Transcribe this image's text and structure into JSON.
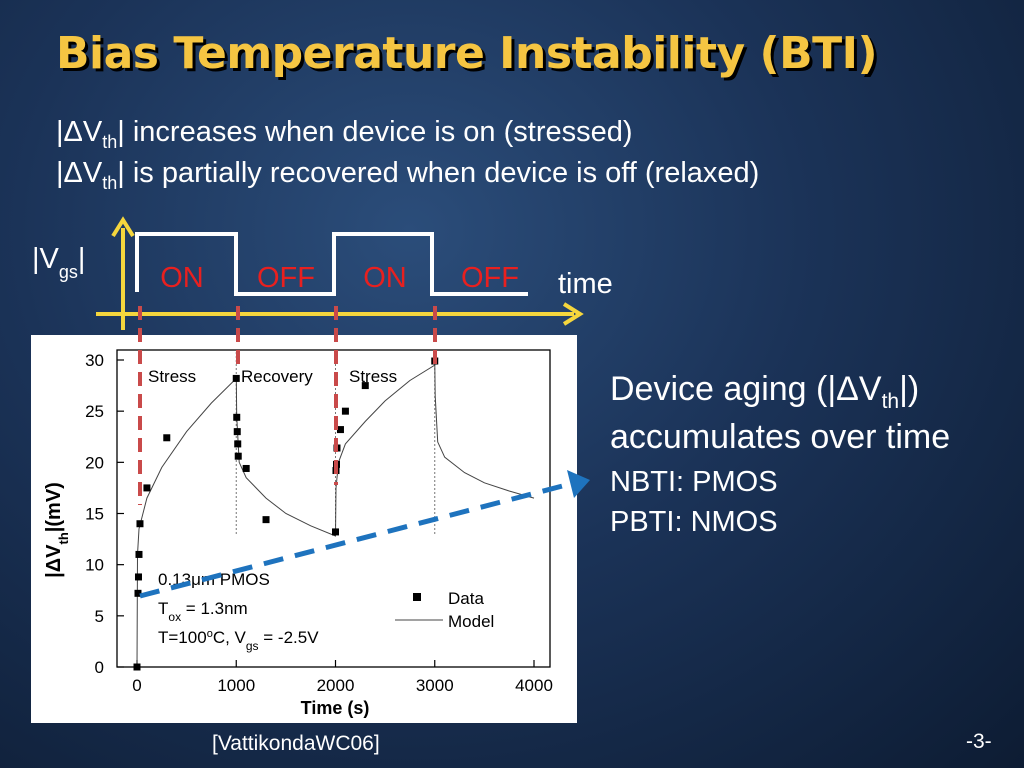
{
  "slide": {
    "title": "Bias Temperature Instability (BTI)",
    "bullets": [
      {
        "prefix": "|ΔV",
        "sub": "th",
        "suffix": "| increases when device is on (stressed)"
      },
      {
        "prefix": "|ΔV",
        "sub": "th",
        "suffix": "| is partially recovered when device is off (relaxed)"
      }
    ],
    "aging_line1": {
      "prefix": "Device aging (|ΔV",
      "sub": "th",
      "suffix": "|)"
    },
    "aging_line2": "accumulates over time",
    "nbti": "NBTI: PMOS",
    "pbti": "PBTI: NMOS",
    "citation": "[VattikondaWC06]",
    "page_number": "-3-"
  },
  "waveform": {
    "ylabel_prefix": "|V",
    "ylabel_sub": "gs",
    "ylabel_suffix": "|",
    "xlabel": "time",
    "phases": [
      "ON",
      "OFF",
      "ON",
      "OFF"
    ],
    "colors": {
      "axis": "#f5d63d",
      "wave": "#ffffff",
      "phase_on": "#e8201f",
      "phase_off": "#e8201f",
      "marker": "#c94a4a",
      "trend": "#1e73be"
    }
  },
  "chart_data": {
    "type": "scatter",
    "xlabel": "Time (s)",
    "ylabel_prefix": "|ΔV",
    "ylabel_sub": "th",
    "ylabel_suffix": "|(mV)",
    "xlim": [
      0,
      4000
    ],
    "ylim": [
      0,
      30
    ],
    "xticks": [
      0,
      1000,
      2000,
      3000,
      4000
    ],
    "yticks": [
      0,
      5,
      10,
      15,
      20,
      25,
      30
    ],
    "regions": [
      "Stress",
      "Recovery",
      "Stress"
    ],
    "region_boundaries": [
      0,
      1000,
      2000,
      3000
    ],
    "annotations": {
      "device": "0.13μm PMOS",
      "tox_prefix": "T",
      "tox_sub": "ox",
      "tox_value": " = 1.3nm",
      "temp_prefix": "T=100",
      "temp_sup": "o",
      "temp_mid": "C, V",
      "temp_sub": "gs",
      "temp_suffix": " = -2.5V"
    },
    "series": [
      {
        "name": "Data",
        "marker": "square",
        "points": [
          [
            0,
            0
          ],
          [
            10,
            7.2
          ],
          [
            15,
            8.8
          ],
          [
            20,
            11
          ],
          [
            30,
            14
          ],
          [
            100,
            17.5
          ],
          [
            300,
            22.4
          ],
          [
            1000,
            28.2
          ],
          [
            1005,
            24.4
          ],
          [
            1010,
            23
          ],
          [
            1015,
            21.8
          ],
          [
            1020,
            20.6
          ],
          [
            1100,
            19.4
          ],
          [
            1300,
            14.4
          ],
          [
            2000,
            13.2
          ],
          [
            2005,
            19.2
          ],
          [
            2010,
            19.8
          ],
          [
            2015,
            21.4
          ],
          [
            2050,
            23.2
          ],
          [
            2100,
            25
          ],
          [
            2300,
            27.5
          ],
          [
            3000,
            29.9
          ]
        ]
      },
      {
        "name": "Model",
        "marker": "line",
        "points": [
          [
            0,
            0
          ],
          [
            5,
            11
          ],
          [
            20,
            13.5
          ],
          [
            100,
            16.5
          ],
          [
            250,
            19.5
          ],
          [
            500,
            23
          ],
          [
            750,
            25.8
          ],
          [
            1000,
            28.2
          ],
          [
            1005,
            24.5
          ],
          [
            1030,
            20
          ],
          [
            1100,
            18.5
          ],
          [
            1300,
            16.5
          ],
          [
            1500,
            15
          ],
          [
            1750,
            13.8
          ],
          [
            2000,
            12.8
          ],
          [
            2005,
            17.5
          ],
          [
            2030,
            20
          ],
          [
            2100,
            21.8
          ],
          [
            2300,
            24
          ],
          [
            2500,
            26
          ],
          [
            2750,
            28
          ],
          [
            3000,
            29.5
          ],
          [
            3005,
            26.5
          ],
          [
            3030,
            22
          ],
          [
            3100,
            20.5
          ],
          [
            3300,
            19
          ],
          [
            3500,
            18
          ],
          [
            3750,
            17.2
          ],
          [
            4000,
            16.5
          ]
        ]
      }
    ],
    "legend": [
      "Data",
      "Model"
    ],
    "legend_position": "bottom-right"
  }
}
